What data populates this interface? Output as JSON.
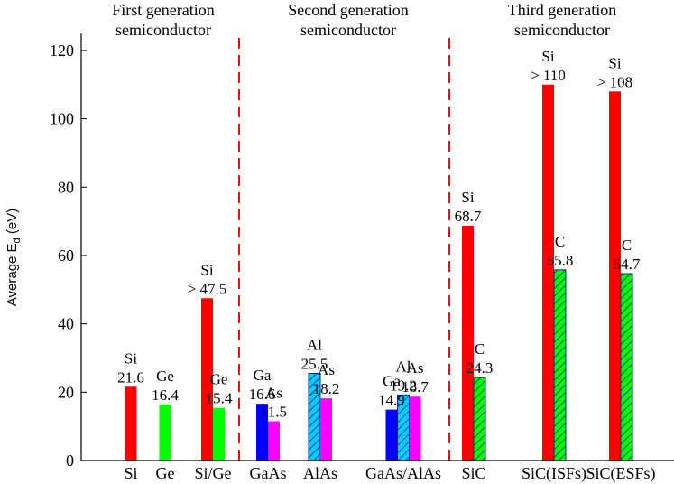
{
  "chart_data": {
    "type": "bar",
    "ylabel": "Average E",
    "ylabel_sub": "d",
    "ylabel_unit": " (eV)",
    "ylim": [
      0,
      125
    ],
    "yticks": [
      0,
      20,
      40,
      60,
      80,
      100,
      120
    ],
    "groups": [
      {
        "title_lines": [
          "First generation",
          "semiconductor"
        ],
        "categories": [
          "Si",
          "Ge",
          "Si/Ge"
        ]
      },
      {
        "title_lines": [
          "Second generation",
          "semiconductor"
        ],
        "categories": [
          "GaAs",
          "AlAs",
          "GaAs/AlAs"
        ]
      },
      {
        "title_lines": [
          "Third generation",
          "semiconductor"
        ],
        "categories": [
          "SiC",
          "SiC(ISFs)",
          "SiC(ESFs)"
        ]
      }
    ],
    "bars": [
      {
        "category": "Si",
        "element": "Si",
        "value": 21.6,
        "label": [
          "Si",
          "21.6"
        ],
        "color": "#ff0000",
        "hatched": false
      },
      {
        "category": "Ge",
        "element": "Ge",
        "value": 16.4,
        "label": [
          "Ge",
          "16.4"
        ],
        "color": "#00ff00",
        "hatched": false
      },
      {
        "category": "Si/Ge",
        "element": "Si",
        "value": 47.5,
        "label": [
          "Si",
          "> 47.5"
        ],
        "color": "#ff0000",
        "hatched": false
      },
      {
        "category": "Si/Ge",
        "element": "Ge",
        "value": 15.4,
        "label": [
          "Ge",
          "15.4"
        ],
        "color": "#00ff00",
        "hatched": false
      },
      {
        "category": "GaAs",
        "element": "Ga",
        "value": 16.6,
        "label": [
          "Ga",
          "16.6"
        ],
        "color": "#0000ff",
        "hatched": false
      },
      {
        "category": "GaAs",
        "element": "As",
        "value": 11.5,
        "label": [
          "As",
          "11.5"
        ],
        "color": "#ff00ff",
        "hatched": false
      },
      {
        "category": "AlAs",
        "element": "Al",
        "value": 25.5,
        "label": [
          "Al",
          "25.5"
        ],
        "color": "#00ccff",
        "hatched": true
      },
      {
        "category": "AlAs",
        "element": "As",
        "value": 18.2,
        "label": [
          "As",
          "18.2"
        ],
        "color": "#ff00ff",
        "hatched": false
      },
      {
        "category": "GaAs/AlAs",
        "element": "Ga",
        "value": 14.9,
        "label": [
          "Ga",
          "14.9"
        ],
        "color": "#0000ff",
        "hatched": false
      },
      {
        "category": "GaAs/AlAs",
        "element": "Al",
        "value": 19.2,
        "label": [
          "Al",
          "19.2"
        ],
        "color": "#00ccff",
        "hatched": true
      },
      {
        "category": "GaAs/AlAs",
        "element": "As",
        "value": 18.7,
        "label": [
          "As",
          "18.7"
        ],
        "color": "#ff00ff",
        "hatched": false
      },
      {
        "category": "SiC",
        "element": "Si",
        "value": 68.7,
        "label": [
          "Si",
          "68.7"
        ],
        "color": "#ff0000",
        "hatched": false
      },
      {
        "category": "SiC",
        "element": "C",
        "value": 24.3,
        "label": [
          "C",
          "24.3"
        ],
        "color": "#00ff00",
        "hatched": true
      },
      {
        "category": "SiC(ISFs)",
        "element": "Si",
        "value": 110,
        "label": [
          "Si",
          "> 110"
        ],
        "color": "#ff0000",
        "hatched": false
      },
      {
        "category": "SiC(ISFs)",
        "element": "C",
        "value": 55.8,
        "label": [
          "C",
          "55.8"
        ],
        "color": "#00ff00",
        "hatched": true
      },
      {
        "category": "SiC(ESFs)",
        "element": "Si",
        "value": 108,
        "label": [
          "Si",
          "> 108"
        ],
        "color": "#ff0000",
        "hatched": false
      },
      {
        "category": "SiC(ESFs)",
        "element": "C",
        "value": 54.7,
        "label": [
          "C",
          "54.7"
        ],
        "color": "#00ff00",
        "hatched": true
      }
    ],
    "separator_style": "dashed-red",
    "separator_color": "#e8101a",
    "grid": false,
    "legend": "none"
  }
}
